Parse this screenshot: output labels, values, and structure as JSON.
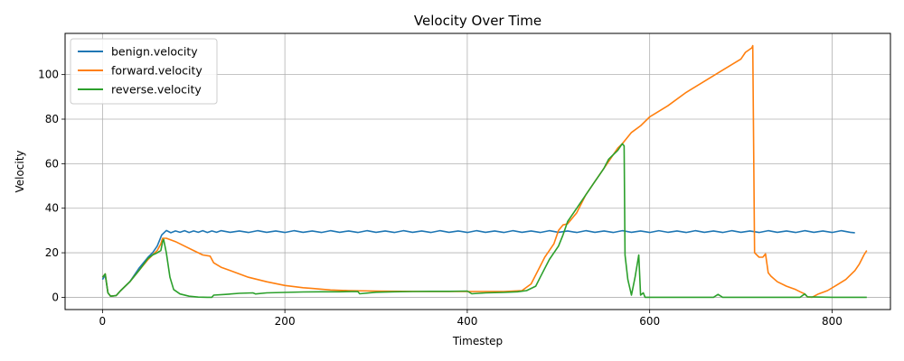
{
  "chart_data": {
    "type": "line",
    "title": "Velocity Over Time",
    "xlabel": "Timestep",
    "ylabel": "Velocity",
    "xlim": [
      -41,
      864
    ],
    "ylim": [
      -5.5,
      118.5
    ],
    "xticks": [
      0,
      200,
      400,
      600,
      800
    ],
    "yticks": [
      0,
      20,
      40,
      60,
      80,
      100
    ],
    "grid": true,
    "legend": "top-left",
    "series": [
      {
        "name": "benign.velocity",
        "color": "#1f77b4",
        "points": [
          [
            0,
            8
          ],
          [
            3,
            10
          ],
          [
            6,
            2
          ],
          [
            9,
            0.5
          ],
          [
            15,
            0.8
          ],
          [
            20,
            3
          ],
          [
            30,
            7
          ],
          [
            40,
            13
          ],
          [
            50,
            18
          ],
          [
            55,
            20
          ],
          [
            60,
            23
          ],
          [
            65,
            28
          ],
          [
            70,
            30
          ],
          [
            75,
            29
          ],
          [
            80,
            29.8
          ],
          [
            85,
            29.2
          ],
          [
            90,
            29.9
          ],
          [
            95,
            29.1
          ],
          [
            100,
            29.8
          ],
          [
            105,
            29.2
          ],
          [
            110,
            29.9
          ],
          [
            115,
            29.1
          ],
          [
            120,
            29.8
          ],
          [
            125,
            29.2
          ],
          [
            130,
            29.9
          ],
          [
            140,
            29.2
          ],
          [
            150,
            29.8
          ],
          [
            160,
            29.1
          ],
          [
            170,
            29.9
          ],
          [
            180,
            29.2
          ],
          [
            190,
            29.8
          ],
          [
            200,
            29.1
          ],
          [
            210,
            29.9
          ],
          [
            220,
            29.2
          ],
          [
            230,
            29.8
          ],
          [
            240,
            29.1
          ],
          [
            250,
            29.9
          ],
          [
            260,
            29.2
          ],
          [
            270,
            29.8
          ],
          [
            280,
            29.1
          ],
          [
            290,
            29.9
          ],
          [
            300,
            29.2
          ],
          [
            310,
            29.8
          ],
          [
            320,
            29.1
          ],
          [
            330,
            29.9
          ],
          [
            340,
            29.2
          ],
          [
            350,
            29.8
          ],
          [
            360,
            29.1
          ],
          [
            370,
            29.9
          ],
          [
            380,
            29.2
          ],
          [
            390,
            29.8
          ],
          [
            400,
            29.1
          ],
          [
            410,
            29.9
          ],
          [
            420,
            29.2
          ],
          [
            430,
            29.8
          ],
          [
            440,
            29.1
          ],
          [
            450,
            29.9
          ],
          [
            460,
            29.2
          ],
          [
            470,
            29.8
          ],
          [
            480,
            29.1
          ],
          [
            490,
            29.9
          ],
          [
            500,
            29.2
          ],
          [
            510,
            29.8
          ],
          [
            520,
            29.1
          ],
          [
            530,
            29.9
          ],
          [
            540,
            29.2
          ],
          [
            550,
            29.8
          ],
          [
            560,
            29.1
          ],
          [
            570,
            29.9
          ],
          [
            580,
            29.2
          ],
          [
            590,
            29.8
          ],
          [
            600,
            29.1
          ],
          [
            610,
            29.9
          ],
          [
            620,
            29.2
          ],
          [
            630,
            29.8
          ],
          [
            640,
            29.1
          ],
          [
            650,
            29.9
          ],
          [
            660,
            29.2
          ],
          [
            670,
            29.8
          ],
          [
            680,
            29.1
          ],
          [
            690,
            29.9
          ],
          [
            700,
            29.2
          ],
          [
            710,
            29.8
          ],
          [
            720,
            29.1
          ],
          [
            730,
            29.9
          ],
          [
            740,
            29.2
          ],
          [
            750,
            29.8
          ],
          [
            760,
            29.1
          ],
          [
            770,
            29.9
          ],
          [
            780,
            29.2
          ],
          [
            790,
            29.8
          ],
          [
            800,
            29.1
          ],
          [
            810,
            29.9
          ],
          [
            820,
            29.2
          ],
          [
            825,
            29
          ]
        ]
      },
      {
        "name": "forward.velocity",
        "color": "#ff7f0e",
        "points": [
          [
            0,
            9
          ],
          [
            3,
            10.5
          ],
          [
            6,
            2
          ],
          [
            9,
            0.5
          ],
          [
            15,
            0.8
          ],
          [
            20,
            3
          ],
          [
            30,
            7
          ],
          [
            40,
            12
          ],
          [
            50,
            17
          ],
          [
            55,
            19
          ],
          [
            60,
            21
          ],
          [
            64,
            24
          ],
          [
            66,
            26.5
          ],
          [
            70,
            26.5
          ],
          [
            80,
            25
          ],
          [
            90,
            23
          ],
          [
            100,
            21
          ],
          [
            110,
            19
          ],
          [
            118,
            18.5
          ],
          [
            122,
            15.5
          ],
          [
            130,
            13.5
          ],
          [
            140,
            12
          ],
          [
            150,
            10.5
          ],
          [
            160,
            9
          ],
          [
            180,
            7
          ],
          [
            200,
            5.3
          ],
          [
            210,
            4.8
          ],
          [
            220,
            4.3
          ],
          [
            230,
            4
          ],
          [
            250,
            3.3
          ],
          [
            270,
            3
          ],
          [
            300,
            2.8
          ],
          [
            330,
            2.7
          ],
          [
            360,
            2.6
          ],
          [
            380,
            2.6
          ],
          [
            400,
            2.6
          ],
          [
            420,
            2.6
          ],
          [
            440,
            2.6
          ],
          [
            460,
            3
          ],
          [
            470,
            6
          ],
          [
            480,
            14
          ],
          [
            485,
            18
          ],
          [
            490,
            21
          ],
          [
            495,
            24
          ],
          [
            500,
            30
          ],
          [
            505,
            32.5
          ],
          [
            510,
            33
          ],
          [
            520,
            38
          ],
          [
            530,
            46
          ],
          [
            540,
            52
          ],
          [
            550,
            58
          ],
          [
            555,
            61
          ],
          [
            565,
            67
          ],
          [
            570,
            69
          ],
          [
            580,
            74
          ],
          [
            590,
            77
          ],
          [
            600,
            81
          ],
          [
            620,
            86
          ],
          [
            640,
            92
          ],
          [
            660,
            97
          ],
          [
            680,
            102
          ],
          [
            700,
            107
          ],
          [
            705,
            110
          ],
          [
            712,
            112
          ],
          [
            713,
            113
          ],
          [
            715,
            20
          ],
          [
            720,
            18
          ],
          [
            724,
            18
          ],
          [
            727,
            19.5
          ],
          [
            730,
            11
          ],
          [
            733,
            9.5
          ],
          [
            740,
            7
          ],
          [
            750,
            5
          ],
          [
            760,
            3.5
          ],
          [
            765,
            2.5
          ],
          [
            770,
            1.5
          ],
          [
            773,
            0.2
          ],
          [
            778,
            0
          ],
          [
            785,
            1.5
          ],
          [
            795,
            3
          ],
          [
            805,
            5.5
          ],
          [
            815,
            8
          ],
          [
            825,
            12
          ],
          [
            830,
            15
          ],
          [
            835,
            19
          ],
          [
            838,
            21
          ]
        ]
      },
      {
        "name": "reverse.velocity",
        "color": "#2ca02c",
        "points": [
          [
            0,
            9
          ],
          [
            3,
            10.5
          ],
          [
            6,
            2
          ],
          [
            9,
            0.5
          ],
          [
            15,
            0.8
          ],
          [
            20,
            3
          ],
          [
            30,
            7
          ],
          [
            40,
            12
          ],
          [
            50,
            17.5
          ],
          [
            55,
            19
          ],
          [
            60,
            20
          ],
          [
            64,
            21
          ],
          [
            66,
            25
          ],
          [
            67,
            26
          ],
          [
            70,
            20
          ],
          [
            74,
            9
          ],
          [
            78,
            3.5
          ],
          [
            85,
            1.5
          ],
          [
            95,
            0.5
          ],
          [
            105,
            0.1
          ],
          [
            115,
            0
          ],
          [
            120,
            0
          ],
          [
            122,
            1
          ],
          [
            135,
            1.3
          ],
          [
            150,
            1.8
          ],
          [
            165,
            2
          ],
          [
            168,
            1.5
          ],
          [
            180,
            2
          ],
          [
            200,
            2.2
          ],
          [
            220,
            2.4
          ],
          [
            240,
            2.5
          ],
          [
            260,
            2.5
          ],
          [
            280,
            2.6
          ],
          [
            282,
            1.6
          ],
          [
            300,
            2.3
          ],
          [
            320,
            2.5
          ],
          [
            340,
            2.6
          ],
          [
            360,
            2.7
          ],
          [
            380,
            2.7
          ],
          [
            400,
            2.8
          ],
          [
            405,
            1.6
          ],
          [
            420,
            2
          ],
          [
            440,
            2.2
          ],
          [
            455,
            2.5
          ],
          [
            465,
            3
          ],
          [
            475,
            5
          ],
          [
            480,
            9
          ],
          [
            490,
            17
          ],
          [
            500,
            23
          ],
          [
            505,
            28
          ],
          [
            510,
            34
          ],
          [
            520,
            40
          ],
          [
            530,
            46
          ],
          [
            540,
            52
          ],
          [
            545,
            55
          ],
          [
            550,
            58
          ],
          [
            555,
            62
          ],
          [
            560,
            64
          ],
          [
            565,
            66
          ],
          [
            570,
            69
          ],
          [
            572,
            68
          ],
          [
            573,
            19
          ],
          [
            576,
            8
          ],
          [
            580,
            1
          ],
          [
            584,
            9
          ],
          [
            588,
            19
          ],
          [
            590,
            1
          ],
          [
            593,
            2
          ],
          [
            595,
            0
          ],
          [
            600,
            0
          ],
          [
            650,
            0
          ],
          [
            670,
            0
          ],
          [
            675,
            1.3
          ],
          [
            680,
            0
          ],
          [
            700,
            0
          ],
          [
            750,
            0
          ],
          [
            765,
            0
          ],
          [
            770,
            1.5
          ],
          [
            773,
            0.2
          ],
          [
            800,
            0
          ],
          [
            820,
            0
          ],
          [
            830,
            0
          ],
          [
            838,
            0
          ]
        ]
      }
    ]
  }
}
